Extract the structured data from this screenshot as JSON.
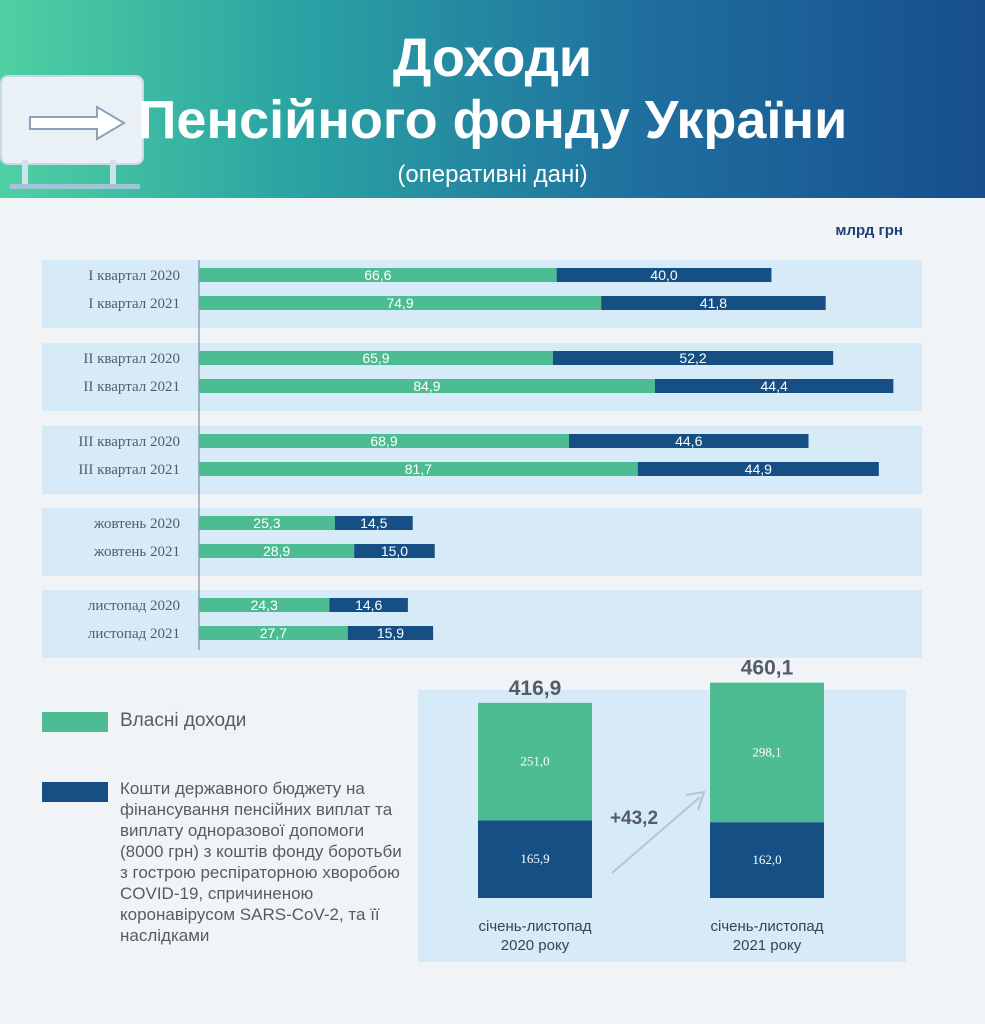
{
  "header": {
    "title_line1": "Доходи",
    "title_line2": "Пенсійного фонду України",
    "subtitle": "(оперативні дані)"
  },
  "unit": "млрд грн",
  "legend": {
    "own": "Власні доходи",
    "state": "Кошти державного бюджету на фінансування пенсійних виплат та виплату одноразової допомоги (8000 грн) з коштів фонду боротьби з гострою респіраторною хворобою COVID-19, спричиненою коронавірусом SARS-CoV-2, та її наслідками"
  },
  "colors": {
    "own": "#4ebc92",
    "state": "#164f84",
    "band": "#d6ebf7"
  },
  "chart_data": [
    {
      "type": "bar",
      "orientation": "horizontal",
      "stacked": true,
      "categories": [
        "I квартал 2020",
        "I квартал 2021",
        "II квартал 2020",
        "II квартал 2021",
        "III квартал 2020",
        "III квартал 2021",
        "жовтень 2020",
        "жовтень 2021",
        "листопад 2020",
        "листопад 2021"
      ],
      "series": [
        {
          "name": "Власні доходи",
          "values": [
            66.6,
            74.9,
            65.9,
            84.9,
            68.9,
            81.7,
            25.3,
            28.9,
            24.3,
            27.7
          ],
          "labels": [
            "66,6",
            "74,9",
            "65,9",
            "84,9",
            "68,9",
            "81,7",
            "25,3",
            "28,9",
            "24,3",
            "27,7"
          ]
        },
        {
          "name": "Кошти державного бюджету",
          "values": [
            40.0,
            41.8,
            52.2,
            44.4,
            44.6,
            44.9,
            14.5,
            15.0,
            14.6,
            15.9
          ],
          "labels": [
            "40,0",
            "41,8",
            "52,2",
            "44,4",
            "44,6",
            "44,9",
            "14,5",
            "15,0",
            "14,6",
            "15,9"
          ]
        }
      ]
    },
    {
      "type": "bar",
      "stacked": true,
      "categories": [
        "січень-листопад 2020 року",
        "січень-листопад 2021 року"
      ],
      "totals": [
        "416,9",
        "460,1"
      ],
      "series": [
        {
          "name": "Власні доходи",
          "values": [
            251.0,
            298.1
          ],
          "labels": [
            "251,0",
            "298,1"
          ]
        },
        {
          "name": "Кошти державного бюджету",
          "values": [
            165.9,
            162.0
          ],
          "labels": [
            "165,9",
            "162,0"
          ]
        }
      ],
      "difference": "+43,2"
    }
  ]
}
